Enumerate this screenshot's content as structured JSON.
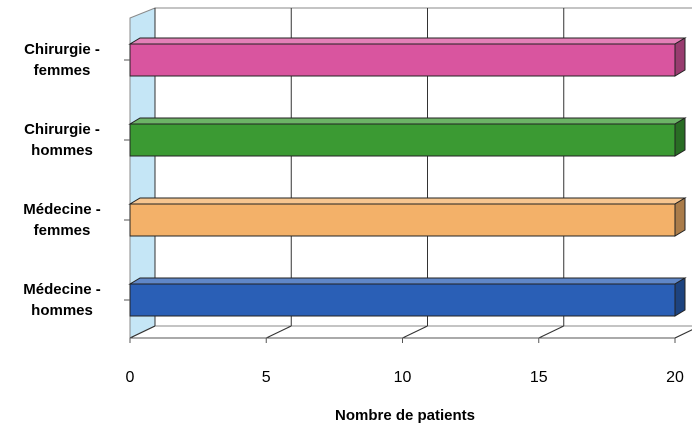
{
  "chart_data": {
    "type": "bar",
    "orientation": "horizontal",
    "categories": [
      [
        "Chirurgie -",
        "femmes"
      ],
      [
        "Chirurgie -",
        "hommes"
      ],
      [
        "Médecine -",
        "femmes"
      ],
      [
        "Médecine -",
        "hommes"
      ]
    ],
    "values": [
      20,
      20,
      20,
      20
    ],
    "colors": [
      "#d9559f",
      "#3b9a33",
      "#f3b169",
      "#2a5fb6"
    ],
    "xlabel": "Nombre de patients",
    "ylabel": "",
    "xlim": [
      0,
      20
    ],
    "xticks": [
      "0",
      "5",
      "10",
      "15",
      "20"
    ],
    "grid": true,
    "style": "3d"
  }
}
